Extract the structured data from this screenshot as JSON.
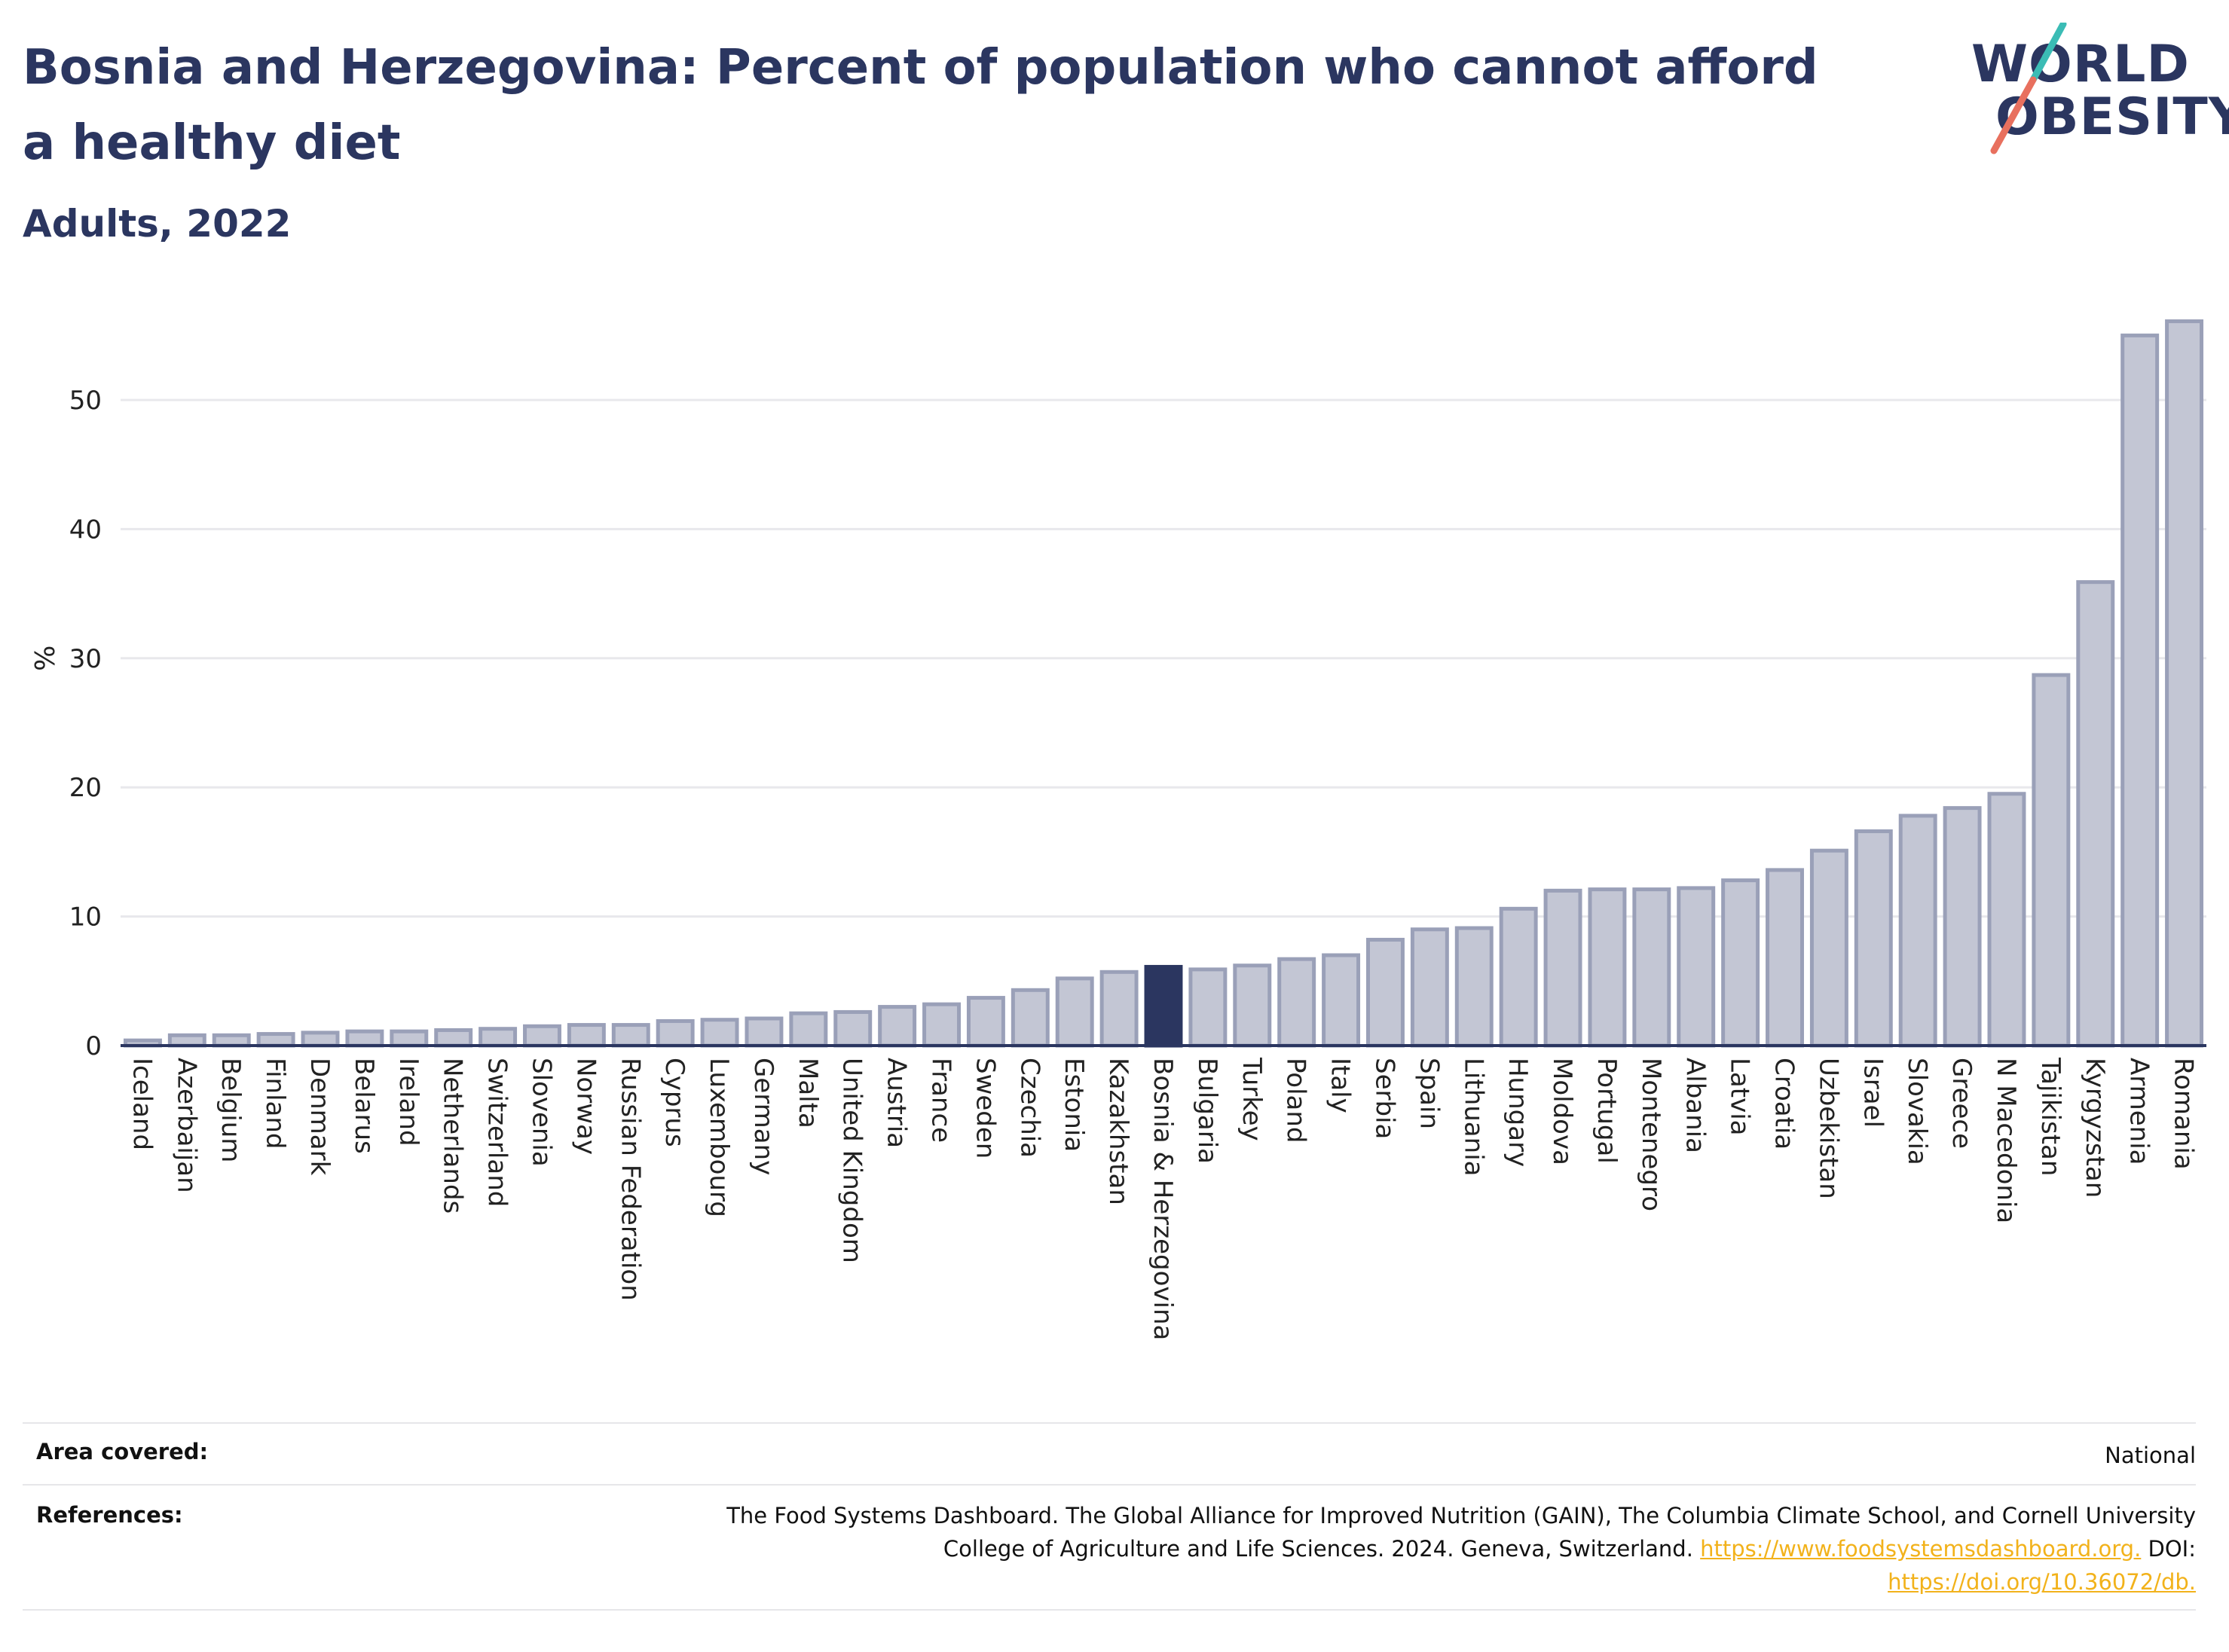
{
  "title": "Bosnia and Herzegovina: Percent of population who cannot afford a healthy diet",
  "subtitle": "Adults, 2022",
  "logo": {
    "line1": "WORLD",
    "line2": "OBESITY"
  },
  "colors": {
    "bar": "#c3c6d4",
    "bar_border": "#9aa0b8",
    "highlight": "#2b3660",
    "grid": "#e8e8ec",
    "text": "#2b3660",
    "link": "#f2b21b"
  },
  "chart_data": {
    "type": "bar",
    "ylabel": "%",
    "xlabel": "",
    "ylim": [
      0,
      58
    ],
    "yticks": [
      0,
      10,
      20,
      30,
      40,
      50
    ],
    "grid": true,
    "highlight": "Bosnia & Herzegovina",
    "categories": [
      "Iceland",
      "Azerbaijan",
      "Belgium",
      "Finland",
      "Denmark",
      "Belarus",
      "Ireland",
      "Netherlands",
      "Switzerland",
      "Slovenia",
      "Norway",
      "Russian Federation",
      "Cyprus",
      "Luxembourg",
      "Germany",
      "Malta",
      "United Kingdom",
      "Austria",
      "France",
      "Sweden",
      "Czechia",
      "Estonia",
      "Kazakhstan",
      "Bosnia & Herzegovina",
      "Bulgaria",
      "Turkey",
      "Poland",
      "Italy",
      "Serbia",
      "Spain",
      "Lithuania",
      "Hungary",
      "Moldova",
      "Portugal",
      "Montenegro",
      "Albania",
      "Latvia",
      "Croatia",
      "Uzbekistan",
      "Israel",
      "Slovakia",
      "Greece",
      "N Macedonia",
      "Tajikistan",
      "Kyrgyzstan",
      "Armenia",
      "Romania"
    ],
    "values": [
      0.4,
      0.8,
      0.8,
      0.9,
      1.0,
      1.1,
      1.1,
      1.2,
      1.3,
      1.5,
      1.6,
      1.6,
      1.9,
      2.0,
      2.1,
      2.5,
      2.6,
      3.0,
      3.2,
      3.7,
      4.3,
      5.2,
      5.7,
      6.1,
      5.9,
      6.2,
      6.7,
      7.0,
      8.2,
      9.0,
      9.1,
      10.6,
      12.0,
      12.1,
      12.1,
      12.2,
      12.8,
      13.6,
      15.1,
      16.6,
      17.8,
      18.4,
      19.5,
      28.7,
      35.9,
      55.0,
      56.1
    ]
  },
  "footer": {
    "area_label": "Area covered:",
    "area_value": "National",
    "references_label": "References:",
    "references_line1": "The Food Systems Dashboard. The Global Alliance for Improved Nutrition (GAIN), The Columbia Climate School, and Cornell University",
    "references_line2": "College of Agriculture and Life Sciences. 2024. Geneva, Switzerland.",
    "references_link1": "https://www.foodsystemsdashboard.org.",
    "references_doi": "DOI:",
    "references_link2": "https://doi.org/10.36072/db."
  }
}
